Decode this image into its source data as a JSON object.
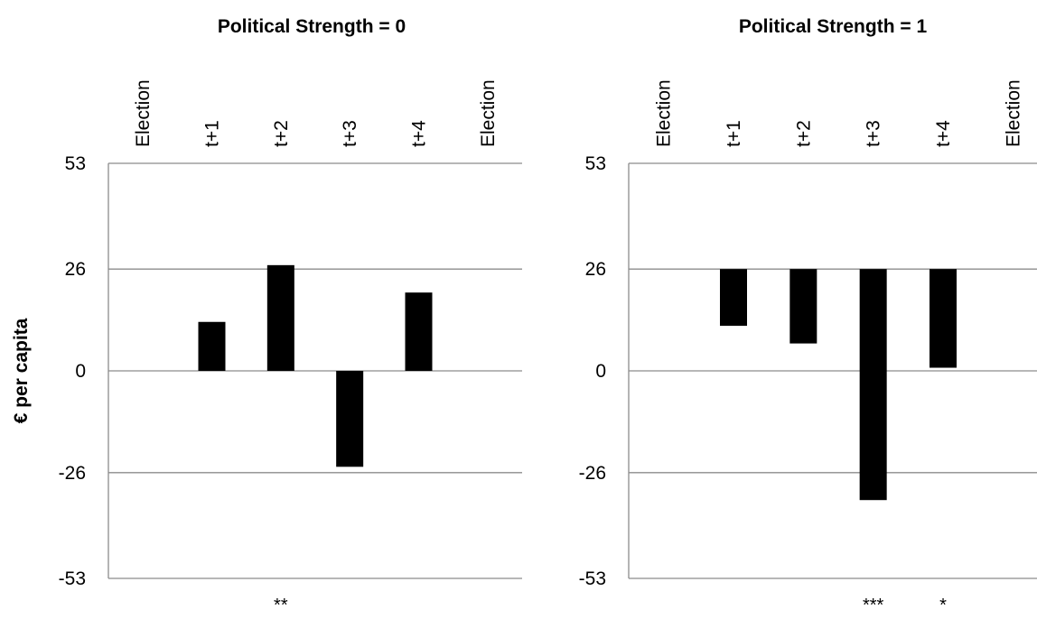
{
  "chart_data": [
    {
      "type": "bar",
      "title": "Political Strength = 0",
      "ylabel": "€ per capita",
      "ylim": [
        -53,
        53
      ],
      "yticks": [
        53,
        26,
        0,
        -26,
        -53
      ],
      "baseline": 0,
      "grid": true,
      "categories": [
        "Election",
        "t+1",
        "t+2",
        "t+3",
        "t+4",
        "Election"
      ],
      "values": [
        null,
        12.5,
        27,
        -24.5,
        20,
        null
      ],
      "annotations": [
        "",
        "",
        "**",
        "",
        "",
        ""
      ]
    },
    {
      "type": "bar",
      "title": "Political Strength = 1",
      "ylabel": "",
      "ylim": [
        -53,
        53
      ],
      "yticks": [
        53,
        26,
        0,
        -26,
        -53
      ],
      "baseline": 26,
      "grid": true,
      "categories": [
        "Election",
        "t+1",
        "t+2",
        "t+3",
        "t+4",
        "Election"
      ],
      "values": [
        null,
        11.5,
        7,
        -33,
        0.8,
        null
      ],
      "annotations": [
        "",
        "",
        "",
        "***",
        "*",
        ""
      ]
    }
  ],
  "colors": {
    "bar": "#000000",
    "grid": "#8c8c8c"
  }
}
